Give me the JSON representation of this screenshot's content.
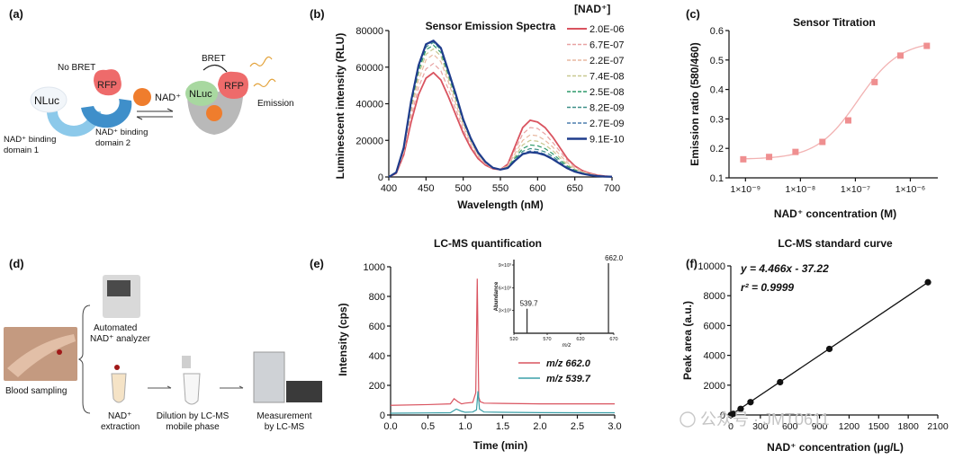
{
  "colors": {
    "red": "#d9535f",
    "blue_dark": "#1f3c8c",
    "teal": "#3aa0a8",
    "green_dash": "#2e9a6a",
    "pink_marker": "#ef8f90",
    "rfp": "#ee6b6b",
    "nluc_blue": "#8cc9ea",
    "nluc_green": "#a8d8a0",
    "nad_orange": "#ef7d2d",
    "grey_tube": "#b9b9b9"
  },
  "panels": {
    "a": {
      "label": "(a)",
      "no_bret": "No BRET",
      "nluc": "NLuc",
      "rfp": "RFP",
      "nad": "NAD⁺",
      "domain1": [
        "NAD⁺ binding",
        "domain 1"
      ],
      "domain2": [
        "NAD⁺ binding",
        "domain 2"
      ],
      "bret": "BRET",
      "emission": "Emission"
    },
    "d": {
      "label": "(d)",
      "analyzer": [
        "Automated",
        "NAD⁺ analyzer"
      ],
      "blood": "Blood sampling",
      "extraction": [
        "NAD⁺",
        "extraction"
      ],
      "dilution": [
        "Dilution by LC-MS",
        "mobile phase"
      ],
      "measurement": [
        "Measurement",
        "by LC-MS"
      ]
    }
  },
  "watermark": "公众号 · JMT0611",
  "chart_data": [
    {
      "id": "b",
      "panel_label": "(b)",
      "type": "line",
      "title": "Sensor Emission Spectra",
      "xlabel": "Wavelength (nM)",
      "ylabel": "Luminescent intensity (RLU)",
      "xlim": [
        400,
        700
      ],
      "ylim": [
        0,
        80000
      ],
      "xticks": [
        "400",
        "450",
        "500",
        "550",
        "600",
        "650",
        "700"
      ],
      "yticks": [
        "0",
        "20000",
        "40000",
        "60000",
        "80000"
      ],
      "legend_title": "[NAD⁺]",
      "legend": [
        "2.0E-06",
        "6.7E-07",
        "2.2E-07",
        "7.4E-08",
        "2.5E-08",
        "8.2E-09",
        "2.7E-09",
        "9.1E-10"
      ],
      "x": [
        400,
        410,
        420,
        430,
        440,
        450,
        460,
        470,
        480,
        490,
        500,
        510,
        520,
        530,
        540,
        550,
        560,
        570,
        580,
        590,
        600,
        610,
        620,
        630,
        640,
        650,
        660,
        670,
        680,
        690,
        700
      ],
      "series": [
        {
          "name": "2.0E-06",
          "values": [
            0,
            2000,
            12000,
            30000,
            45000,
            54000,
            57000,
            53000,
            44000,
            34000,
            24000,
            16000,
            10000,
            6500,
            4500,
            4000,
            7000,
            17000,
            27000,
            31000,
            30000,
            27000,
            22000,
            16000,
            10000,
            6000,
            3500,
            2000,
            1000,
            500,
            200
          ]
        },
        {
          "name": "6.7E-07",
          "values": [
            0,
            2100,
            13000,
            33000,
            49000,
            59000,
            62000,
            58000,
            48000,
            37000,
            26000,
            17500,
            11000,
            7000,
            4600,
            4000,
            6500,
            15000,
            23500,
            27000,
            26500,
            23500,
            19000,
            14000,
            9000,
            5500,
            3200,
            1800,
            900,
            450,
            200
          ]
        },
        {
          "name": "2.2E-07",
          "values": [
            0,
            2200,
            14000,
            36000,
            53000,
            64000,
            67000,
            63000,
            52000,
            40000,
            28000,
            19000,
            12000,
            7500,
            4800,
            4000,
            6000,
            13000,
            20000,
            23000,
            22500,
            20000,
            16500,
            12000,
            7800,
            4800,
            2800,
            1600,
            800,
            400,
            180
          ]
        },
        {
          "name": "7.4E-08",
          "values": [
            0,
            2300,
            14800,
            38000,
            56000,
            67000,
            70000,
            66000,
            54000,
            42000,
            29500,
            20000,
            12500,
            7800,
            4900,
            4000,
            5600,
            11500,
            17500,
            20000,
            19500,
            17500,
            14500,
            10500,
            6800,
            4200,
            2500,
            1400,
            700,
            350,
            160
          ]
        },
        {
          "name": "2.5E-08",
          "values": [
            0,
            2400,
            15200,
            39500,
            58000,
            69500,
            72000,
            68000,
            56000,
            43500,
            30500,
            20500,
            13000,
            8000,
            5000,
            4000,
            5300,
            10500,
            15500,
            17500,
            17000,
            15500,
            12800,
            9300,
            6000,
            3800,
            2200,
            1300,
            650,
            320,
            150
          ]
        },
        {
          "name": "8.2E-09",
          "values": [
            0,
            2400,
            15500,
            40500,
            59500,
            71000,
            73500,
            69500,
            57000,
            44500,
            31000,
            21000,
            13200,
            8100,
            5000,
            4000,
            5100,
            9800,
            14000,
            15500,
            15000,
            13700,
            11300,
            8300,
            5400,
            3400,
            2000,
            1200,
            600,
            300,
            140
          ]
        },
        {
          "name": "2.7E-09",
          "values": [
            0,
            2450,
            15700,
            41000,
            60500,
            72000,
            74000,
            70000,
            57500,
            45000,
            31300,
            21200,
            13300,
            8150,
            5000,
            4000,
            5000,
            9300,
            13000,
            14200,
            13800,
            12500,
            10300,
            7600,
            5000,
            3100,
            1900,
            1100,
            550,
            280,
            130
          ]
        },
        {
          "name": "9.1E-10",
          "values": [
            0,
            2500,
            16000,
            41500,
            61000,
            72500,
            74500,
            70500,
            58000,
            45300,
            31500,
            21300,
            13400,
            8200,
            5000,
            4000,
            4900,
            9000,
            12500,
            13500,
            13100,
            11900,
            9800,
            7200,
            4700,
            2900,
            1800,
            1000,
            500,
            260,
            120
          ]
        }
      ]
    },
    {
      "id": "c",
      "panel_label": "(c)",
      "type": "line",
      "title": "Sensor Titration",
      "xlabel": "NAD⁺ concentration (M)",
      "ylabel": "Emission ratio (580/460)",
      "xscale": "log",
      "xlim_log10": [
        -9.3,
        -5.5
      ],
      "ylim": [
        0.1,
        0.6
      ],
      "xticks": [
        "1×10⁻⁹",
        "1×10⁻⁸",
        "1×10⁻⁷",
        "1×10⁻⁶"
      ],
      "xtick_log10": [
        -9,
        -8,
        -7,
        -6
      ],
      "yticks": [
        "0.1",
        "0.2",
        "0.3",
        "0.4",
        "0.5",
        "0.6"
      ],
      "ytick_values": [
        0.1,
        0.2,
        0.3,
        0.4,
        0.5,
        0.6
      ],
      "points_log10x": [
        -9.04,
        -8.57,
        -8.09,
        -7.6,
        -7.13,
        -6.65,
        -6.18,
        -5.7
      ],
      "points_y": [
        0.163,
        0.171,
        0.188,
        0.222,
        0.295,
        0.425,
        0.515,
        0.548
      ]
    },
    {
      "id": "e",
      "panel_label": "(e)",
      "type": "line",
      "title": "LC-MS quantification",
      "xlabel": "Time (min)",
      "ylabel": "Intensity (cps)",
      "xlim": [
        0,
        3.0
      ],
      "ylim": [
        0,
        1000
      ],
      "xticks": [
        "0.0",
        "0.5",
        "1.0",
        "1.5",
        "2.0",
        "2.5",
        "3.0"
      ],
      "yticks": [
        "0",
        "200",
        "400",
        "600",
        "800",
        "1000"
      ],
      "legend": [
        "m/z 662.0",
        "m/z 539.7"
      ],
      "series": [
        {
          "name": "m/z 662.0",
          "x": [
            0,
            0.5,
            0.8,
            0.85,
            0.9,
            0.95,
            1.0,
            1.1,
            1.14,
            1.16,
            1.18,
            1.2,
            1.25,
            1.5,
            2.0,
            2.5,
            3.0
          ],
          "values": [
            65,
            70,
            75,
            110,
            90,
            75,
            80,
            85,
            150,
            920,
            120,
            90,
            80,
            78,
            75,
            75,
            75
          ]
        },
        {
          "name": "m/z 539.7",
          "x": [
            0,
            0.5,
            0.8,
            0.88,
            0.95,
            1.0,
            1.1,
            1.15,
            1.17,
            1.19,
            1.25,
            1.5,
            2.0,
            2.5,
            3.0
          ],
          "values": [
            12,
            14,
            15,
            40,
            25,
            18,
            20,
            35,
            160,
            40,
            20,
            18,
            16,
            15,
            15
          ]
        }
      ],
      "inset": {
        "xlabel": "m/z",
        "ylabel": "Abundance",
        "xticks": [
          "520",
          "570",
          "620",
          "670"
        ],
        "yticks": [
          "3×10³",
          "6×10³",
          "9×10³"
        ],
        "peaks": [
          {
            "mz": 539.7,
            "rel": 0.35,
            "label": "539.7"
          },
          {
            "mz": 662.0,
            "rel": 1.0,
            "label": "662.0"
          }
        ],
        "xlim": [
          520,
          670
        ]
      }
    },
    {
      "id": "f",
      "panel_label": "(f)",
      "type": "line",
      "title": "LC-MS standard curve",
      "xlabel": "NAD⁺ concentration (μg/L)",
      "ylabel": "Peak area (a.u.)",
      "xlim": [
        0,
        2100
      ],
      "ylim": [
        0,
        10000
      ],
      "xticks": [
        "0",
        "300",
        "600",
        "900",
        "1200",
        "1500",
        "1800",
        "2100"
      ],
      "yticks": [
        "0",
        "2000",
        "4000",
        "6000",
        "8000",
        "10000"
      ],
      "equation": "y = 4.466x - 37.22",
      "r2": "r² = 0.9999",
      "points_x": [
        0,
        25,
        100,
        200,
        500,
        1000,
        2000
      ],
      "points_y": [
        0,
        80,
        410,
        860,
        2200,
        4430,
        8900
      ]
    }
  ]
}
